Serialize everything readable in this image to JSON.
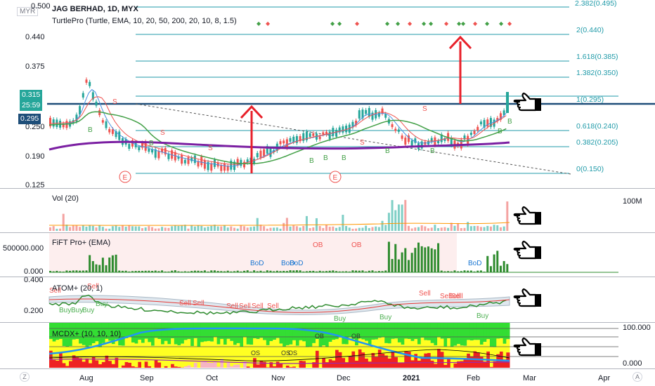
{
  "currency": "MYR",
  "header": {
    "symbol_line": "JAG BERHAD, 1D, MYX",
    "indicator_line": "TurtlePro (Turtle, EMA, 10, 20, 50, 200, 20, 10, 8, 1.5)"
  },
  "price_axis": {
    "labels": [
      "0.500",
      "0.440",
      "0.375",
      "0.250",
      "0.190",
      "0.125"
    ],
    "price_badge": "0.315",
    "countdown_badge": "25:59",
    "level_badge": "0.295"
  },
  "fib_levels": [
    {
      "label": "2.382(0.495)"
    },
    {
      "label": "2(0.440)"
    },
    {
      "label": "1.618(0.385)"
    },
    {
      "label": "1.382(0.350)"
    },
    {
      "label": "1(0.295)"
    },
    {
      "label": "0.618(0.240)"
    },
    {
      "label": "0.382(0.205)"
    },
    {
      "label": "0(0.150)"
    }
  ],
  "chart_marks": {
    "buy_b": "B",
    "sell_s": "S",
    "earnings_e": "E"
  },
  "vol_pane": {
    "title": "Vol (20)",
    "axis": "100M"
  },
  "fift_pane": {
    "title": "FiFT Pro+ (EMA)",
    "axis_top": "500000.000",
    "axis_bottom": "0.000",
    "labels": {
      "ob": "OB",
      "bod": "BoD"
    }
  },
  "atom_pane": {
    "title": "ATOM+ (20, 1)",
    "axis_top": "0.400",
    "axis_bottom": "0.200",
    "labels": {
      "sell": "Sell",
      "buy": "Buy"
    }
  },
  "mcdx_pane": {
    "title": "MCDX+ (10, 10, 10)",
    "axis_top": "100.000",
    "axis_bottom": "0.000",
    "labels": {
      "os": "OS",
      "ob": "OB"
    }
  },
  "time_axis": {
    "labels": [
      "Aug",
      "Sep",
      "Oct",
      "Nov",
      "Dec",
      "2021",
      "Feb",
      "Mar",
      "Apr"
    ]
  },
  "corner_buttons": {
    "left": "Z",
    "right": "A"
  },
  "icons": [
    "hand-pointing-icon",
    "arrow-up-icon"
  ],
  "colors": {
    "bull": "#26a69a",
    "bear": "#ef5350",
    "fib": "#1f9aa8",
    "resistance": "#1e4e79",
    "ema200": "#7b1fa2",
    "ema50": "#43a047",
    "arrow": "#e8202a",
    "mcdx_green": "#33dd33",
    "mcdx_yellow": "#ffff22",
    "mcdx_red": "#ee2222"
  }
}
